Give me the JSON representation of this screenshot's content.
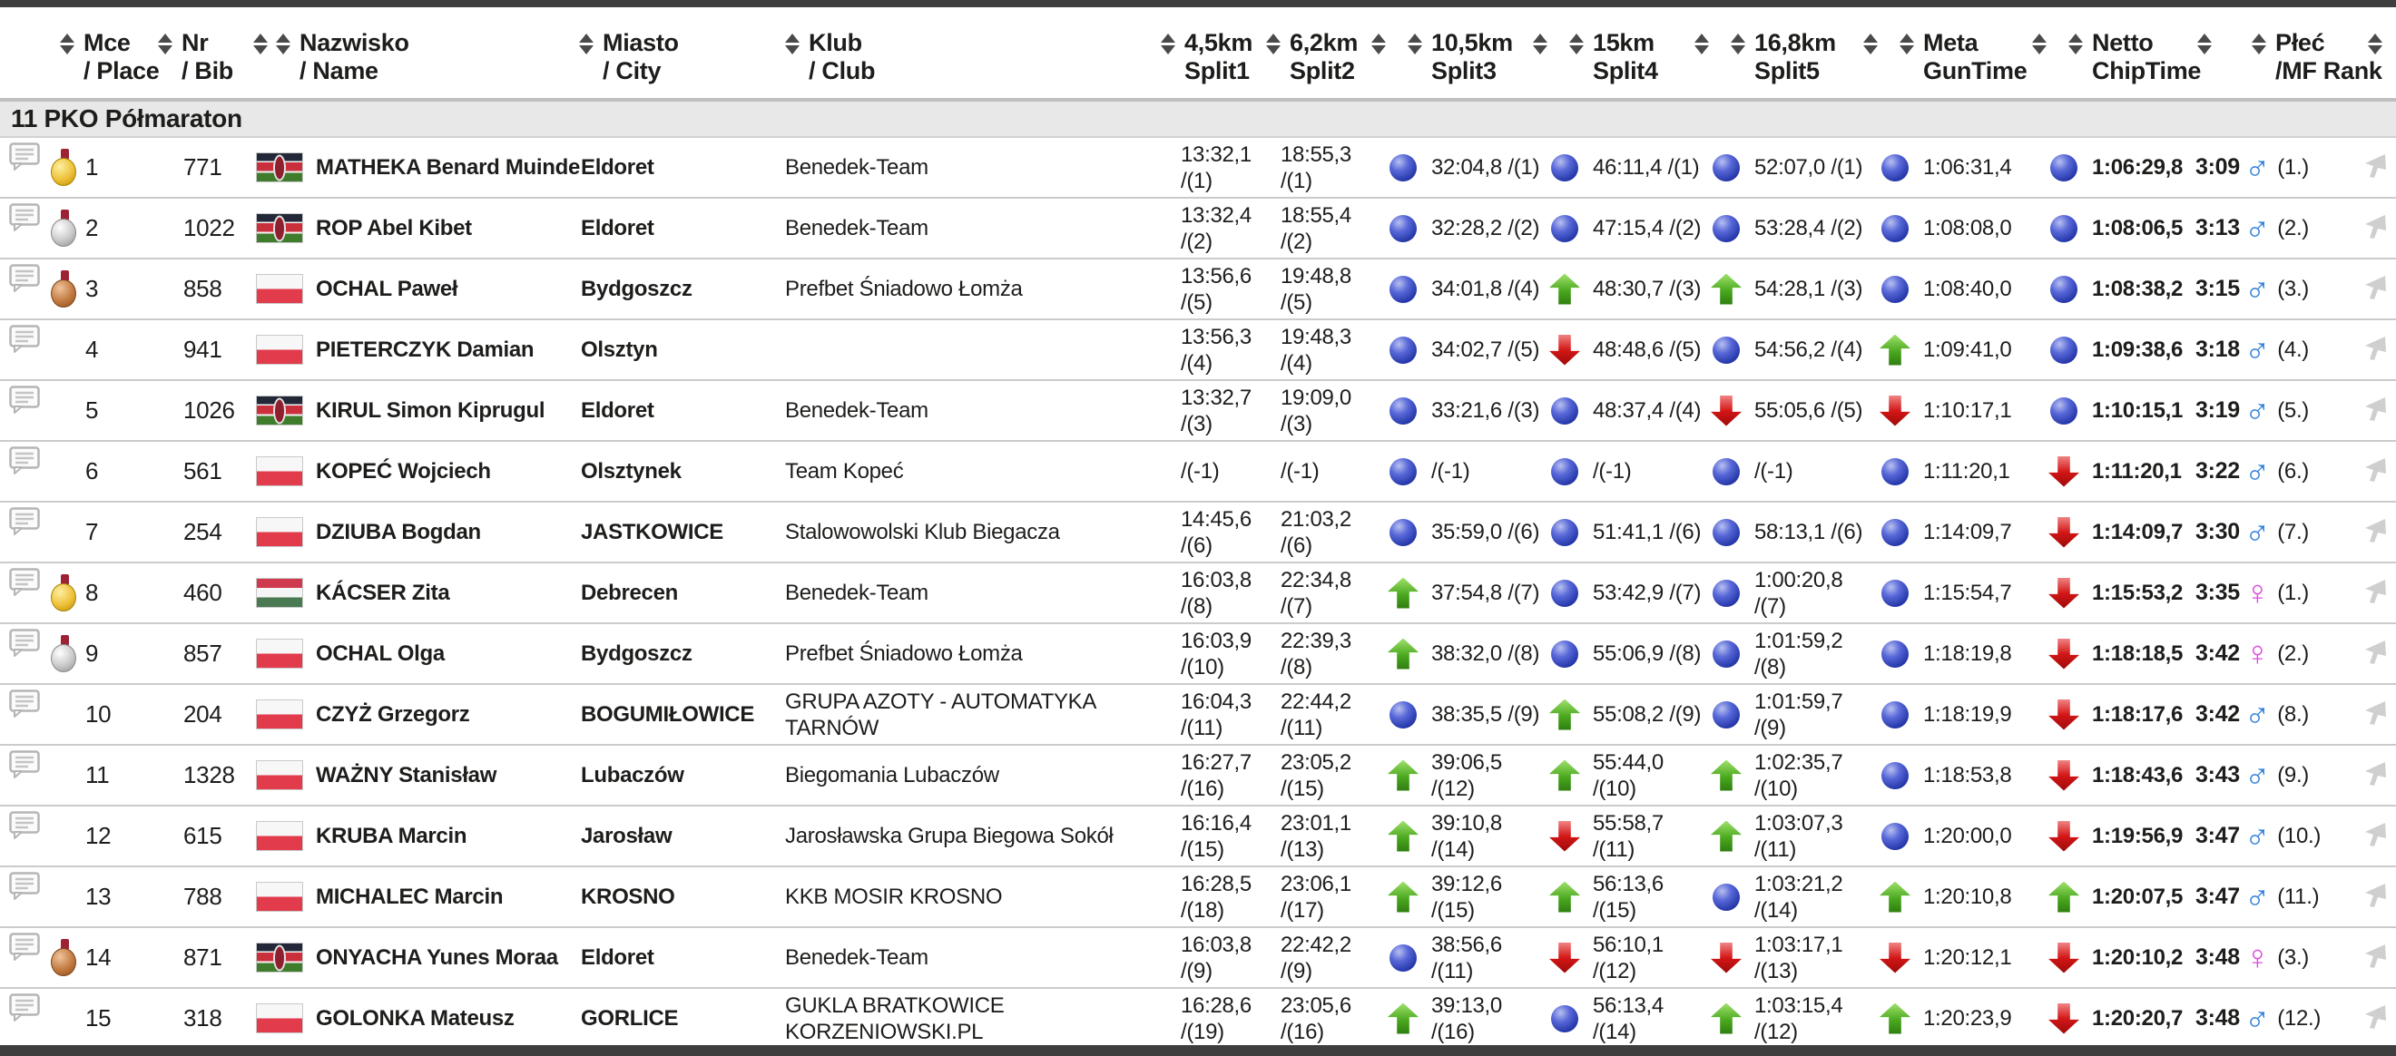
{
  "section": {
    "title": "11 PKO Półmaraton"
  },
  "header": {
    "columns": [
      {
        "line1": "Mce",
        "line2": "/ Place"
      },
      {
        "line1": "Nr",
        "line2": "/ Bib"
      },
      {
        "line1": "Nazwisko",
        "line2": "/ Name"
      },
      {
        "line1": "Miasto",
        "line2": "/ City"
      },
      {
        "line1": "Klub",
        "line2": "/ Club"
      },
      {
        "line1": "4,5km",
        "line2": "Split1"
      },
      {
        "line1": "6,2km",
        "line2": "Split2"
      },
      {
        "line1": "10,5km",
        "line2": "Split3"
      },
      {
        "line1": "15km",
        "line2": "Split4"
      },
      {
        "line1": "16,8km",
        "line2": "Split5"
      },
      {
        "line1": "Meta",
        "line2": "GunTime"
      },
      {
        "line1": "Netto",
        "line2": "ChipTime"
      },
      {
        "line1": "",
        "line2": ""
      },
      {
        "line1": "Płeć",
        "line2": "/MF Rank"
      }
    ]
  },
  "icons": {
    "comment": "comment-bubble-icon",
    "sort": "sort-arrows-icon",
    "trend_same": "blue-dot-icon",
    "trend_up": "green-up-arrow-icon",
    "trend_down": "red-down-arrow-icon",
    "male": "male-symbol-icon",
    "female": "female-symbol-icon",
    "medal": "medal-icon",
    "cursor": "cursor-icon"
  },
  "colors": {
    "male": "#2d7fd9",
    "female": "#df4ddf",
    "trend_up": "#4aa81e",
    "trend_down": "#d31616",
    "trend_same": "#2436a8",
    "medal_gold": "#eec13a",
    "medal_silver": "#c9c9c9",
    "medal_bronze": "#c17a40",
    "section_bg": "#e8e8e8",
    "dark_strip": "#3e3e3e"
  },
  "rows": [
    {
      "place": "1",
      "medal": "gold",
      "bib": "771",
      "flag": "ke",
      "name": "MATHEKA Benard Muinde",
      "city": "Eldoret",
      "club": "Benedek-Team",
      "split1": {
        "time": "13:32,1",
        "rank": "1"
      },
      "split2": {
        "time": "18:55,3",
        "rank": "1"
      },
      "split3": {
        "trend": "same",
        "time": "32:04,8",
        "rank": "1"
      },
      "split4": {
        "trend": "same",
        "time": "46:11,4",
        "rank": "1"
      },
      "split5": {
        "trend": "same",
        "time": "52:07,0",
        "rank": "1"
      },
      "gun": {
        "trend": "same",
        "time": "1:06:31,4"
      },
      "chip": {
        "trend": "same",
        "time": "1:06:29,8"
      },
      "pace": "3:09",
      "sex": "m",
      "sex_rank": "(1.)"
    },
    {
      "place": "2",
      "medal": "silver",
      "bib": "1022",
      "flag": "ke",
      "name": "ROP Abel Kibet",
      "city": "Eldoret",
      "club": "Benedek-Team",
      "split1": {
        "time": "13:32,4",
        "rank": "2"
      },
      "split2": {
        "time": "18:55,4",
        "rank": "2"
      },
      "split3": {
        "trend": "same",
        "time": "32:28,2",
        "rank": "2"
      },
      "split4": {
        "trend": "same",
        "time": "47:15,4",
        "rank": "2"
      },
      "split5": {
        "trend": "same",
        "time": "53:28,4",
        "rank": "2"
      },
      "gun": {
        "trend": "same",
        "time": "1:08:08,0"
      },
      "chip": {
        "trend": "same",
        "time": "1:08:06,5"
      },
      "pace": "3:13",
      "sex": "m",
      "sex_rank": "(2.)"
    },
    {
      "place": "3",
      "medal": "bronze",
      "bib": "858",
      "flag": "pl",
      "name": "OCHAL Paweł",
      "city": "Bydgoszcz",
      "club": "Prefbet Śniadowo Łomża",
      "split1": {
        "time": "13:56,6",
        "rank": "5"
      },
      "split2": {
        "time": "19:48,8",
        "rank": "5"
      },
      "split3": {
        "trend": "same",
        "time": "34:01,8",
        "rank": "4"
      },
      "split4": {
        "trend": "up",
        "time": "48:30,7",
        "rank": "3"
      },
      "split5": {
        "trend": "up",
        "time": "54:28,1",
        "rank": "3"
      },
      "gun": {
        "trend": "same",
        "time": "1:08:40,0"
      },
      "chip": {
        "trend": "same",
        "time": "1:08:38,2"
      },
      "pace": "3:15",
      "sex": "m",
      "sex_rank": "(3.)"
    },
    {
      "place": "4",
      "medal": "none",
      "bib": "941",
      "flag": "pl",
      "name": "PIETERCZYK Damian",
      "city": "Olsztyn",
      "club": "",
      "split1": {
        "time": "13:56,3",
        "rank": "4"
      },
      "split2": {
        "time": "19:48,3",
        "rank": "4"
      },
      "split3": {
        "trend": "same",
        "time": "34:02,7",
        "rank": "5"
      },
      "split4": {
        "trend": "down",
        "time": "48:48,6",
        "rank": "5"
      },
      "split5": {
        "trend": "same",
        "time": "54:56,2",
        "rank": "4"
      },
      "gun": {
        "trend": "up",
        "time": "1:09:41,0"
      },
      "chip": {
        "trend": "same",
        "time": "1:09:38,6"
      },
      "pace": "3:18",
      "sex": "m",
      "sex_rank": "(4.)"
    },
    {
      "place": "5",
      "medal": "none",
      "bib": "1026",
      "flag": "ke",
      "name": "KIRUL Simon Kiprugul",
      "city": "Eldoret",
      "club": "Benedek-Team",
      "split1": {
        "time": "13:32,7",
        "rank": "3"
      },
      "split2": {
        "time": "19:09,0",
        "rank": "3"
      },
      "split3": {
        "trend": "same",
        "time": "33:21,6",
        "rank": "3"
      },
      "split4": {
        "trend": "same",
        "time": "48:37,4",
        "rank": "4"
      },
      "split5": {
        "trend": "down",
        "time": "55:05,6",
        "rank": "5"
      },
      "gun": {
        "trend": "down",
        "time": "1:10:17,1"
      },
      "chip": {
        "trend": "same",
        "time": "1:10:15,1"
      },
      "pace": "3:19",
      "sex": "m",
      "sex_rank": "(5.)"
    },
    {
      "place": "6",
      "medal": "none",
      "bib": "561",
      "flag": "pl",
      "name": "KOPEĆ Wojciech",
      "city": "Olsztynek",
      "club": "Team Kopeć",
      "split1": {
        "time": "",
        "rank": "-1"
      },
      "split2": {
        "time": "",
        "rank": "-1"
      },
      "split3": {
        "trend": "same",
        "time": "",
        "rank": "-1"
      },
      "split4": {
        "trend": "same",
        "time": "",
        "rank": "-1"
      },
      "split5": {
        "trend": "same",
        "time": "",
        "rank": "-1"
      },
      "gun": {
        "trend": "same",
        "time": "1:11:20,1"
      },
      "chip": {
        "trend": "down",
        "time": "1:11:20,1"
      },
      "pace": "3:22",
      "sex": "m",
      "sex_rank": "(6.)"
    },
    {
      "place": "7",
      "medal": "none",
      "bib": "254",
      "flag": "pl",
      "name": "DZIUBA Bogdan",
      "city": "JASTKOWICE",
      "club": "Stalowowolski Klub Biegacza",
      "split1": {
        "time": "14:45,6",
        "rank": "6"
      },
      "split2": {
        "time": "21:03,2",
        "rank": "6"
      },
      "split3": {
        "trend": "same",
        "time": "35:59,0",
        "rank": "6"
      },
      "split4": {
        "trend": "same",
        "time": "51:41,1",
        "rank": "6"
      },
      "split5": {
        "trend": "same",
        "time": "58:13,1",
        "rank": "6"
      },
      "gun": {
        "trend": "same",
        "time": "1:14:09,7"
      },
      "chip": {
        "trend": "down",
        "time": "1:14:09,7"
      },
      "pace": "3:30",
      "sex": "m",
      "sex_rank": "(7.)"
    },
    {
      "place": "8",
      "medal": "gold",
      "bib": "460",
      "flag": "hu",
      "name": "KÁCSER Zita",
      "city": "Debrecen",
      "club": "Benedek-Team",
      "split1": {
        "time": "16:03,8",
        "rank": "8"
      },
      "split2": {
        "time": "22:34,8",
        "rank": "7"
      },
      "split3": {
        "trend": "up",
        "time": "37:54,8",
        "rank": "7"
      },
      "split4": {
        "trend": "same",
        "time": "53:42,9",
        "rank": "7"
      },
      "split5": {
        "trend": "same",
        "time": "1:00:20,8",
        "rank": "7"
      },
      "gun": {
        "trend": "same",
        "time": "1:15:54,7"
      },
      "chip": {
        "trend": "down",
        "time": "1:15:53,2"
      },
      "pace": "3:35",
      "sex": "f",
      "sex_rank": "(1.)"
    },
    {
      "place": "9",
      "medal": "silver",
      "bib": "857",
      "flag": "pl",
      "name": "OCHAL Olga",
      "city": "Bydgoszcz",
      "club": "Prefbet Śniadowo Łomża",
      "split1": {
        "time": "16:03,9",
        "rank": "10"
      },
      "split2": {
        "time": "22:39,3",
        "rank": "8"
      },
      "split3": {
        "trend": "up",
        "time": "38:32,0",
        "rank": "8"
      },
      "split4": {
        "trend": "same",
        "time": "55:06,9",
        "rank": "8"
      },
      "split5": {
        "trend": "same",
        "time": "1:01:59,2",
        "rank": "8"
      },
      "gun": {
        "trend": "same",
        "time": "1:18:19,8"
      },
      "chip": {
        "trend": "down",
        "time": "1:18:18,5"
      },
      "pace": "3:42",
      "sex": "f",
      "sex_rank": "(2.)"
    },
    {
      "place": "10",
      "medal": "none",
      "bib": "204",
      "flag": "pl",
      "name": "CZYŻ Grzegorz",
      "city": "BOGUMIŁOWICE",
      "club": "GRUPA AZOTY - AUTOMATYKA TARNÓW",
      "split1": {
        "time": "16:04,3",
        "rank": "11"
      },
      "split2": {
        "time": "22:44,2",
        "rank": "11"
      },
      "split3": {
        "trend": "same",
        "time": "38:35,5",
        "rank": "9"
      },
      "split4": {
        "trend": "up",
        "time": "55:08,2",
        "rank": "9"
      },
      "split5": {
        "trend": "same",
        "time": "1:01:59,7",
        "rank": "9"
      },
      "gun": {
        "trend": "same",
        "time": "1:18:19,9"
      },
      "chip": {
        "trend": "down",
        "time": "1:18:17,6"
      },
      "pace": "3:42",
      "sex": "m",
      "sex_rank": "(8.)"
    },
    {
      "place": "11",
      "medal": "none",
      "bib": "1328",
      "flag": "pl",
      "name": "WAŻNY Stanisław",
      "city": "Lubaczów",
      "club": "Biegomania Lubaczów",
      "split1": {
        "time": "16:27,7",
        "rank": "16"
      },
      "split2": {
        "time": "23:05,2",
        "rank": "15"
      },
      "split3": {
        "trend": "up",
        "time": "39:06,5",
        "rank": "12"
      },
      "split4": {
        "trend": "up",
        "time": "55:44,0",
        "rank": "10"
      },
      "split5": {
        "trend": "up",
        "time": "1:02:35,7",
        "rank": "10"
      },
      "gun": {
        "trend": "same",
        "time": "1:18:53,8"
      },
      "chip": {
        "trend": "down",
        "time": "1:18:43,6"
      },
      "pace": "3:43",
      "sex": "m",
      "sex_rank": "(9.)"
    },
    {
      "place": "12",
      "medal": "none",
      "bib": "615",
      "flag": "pl",
      "name": "KRUBA Marcin",
      "city": "Jarosław",
      "club": "Jarosławska Grupa Biegowa Sokół",
      "split1": {
        "time": "16:16,4",
        "rank": "15"
      },
      "split2": {
        "time": "23:01,1",
        "rank": "13"
      },
      "split3": {
        "trend": "up",
        "time": "39:10,8",
        "rank": "14"
      },
      "split4": {
        "trend": "down",
        "time": "55:58,7",
        "rank": "11"
      },
      "split5": {
        "trend": "up",
        "time": "1:03:07,3",
        "rank": "11"
      },
      "gun": {
        "trend": "same",
        "time": "1:20:00,0"
      },
      "chip": {
        "trend": "down",
        "time": "1:19:56,9"
      },
      "pace": "3:47",
      "sex": "m",
      "sex_rank": "(10.)"
    },
    {
      "place": "13",
      "medal": "none",
      "bib": "788",
      "flag": "pl",
      "name": "MICHALEC Marcin",
      "city": "KROSNO",
      "club": "KKB MOSIR KROSNO",
      "split1": {
        "time": "16:28,5",
        "rank": "18"
      },
      "split2": {
        "time": "23:06,1",
        "rank": "17"
      },
      "split3": {
        "trend": "up",
        "time": "39:12,6",
        "rank": "15"
      },
      "split4": {
        "trend": "up",
        "time": "56:13,6",
        "rank": "15"
      },
      "split5": {
        "trend": "same",
        "time": "1:03:21,2",
        "rank": "14"
      },
      "gun": {
        "trend": "up",
        "time": "1:20:10,8"
      },
      "chip": {
        "trend": "up",
        "time": "1:20:07,5"
      },
      "pace": "3:47",
      "sex": "m",
      "sex_rank": "(11.)"
    },
    {
      "place": "14",
      "medal": "bronze",
      "bib": "871",
      "flag": "ke",
      "name": "ONYACHA Yunes Moraa",
      "city": "Eldoret",
      "club": "Benedek-Team",
      "split1": {
        "time": "16:03,8",
        "rank": "9"
      },
      "split2": {
        "time": "22:42,2",
        "rank": "9"
      },
      "split3": {
        "trend": "same",
        "time": "38:56,6",
        "rank": "11"
      },
      "split4": {
        "trend": "down",
        "time": "56:10,1",
        "rank": "12"
      },
      "split5": {
        "trend": "down",
        "time": "1:03:17,1",
        "rank": "13"
      },
      "gun": {
        "trend": "down",
        "time": "1:20:12,1"
      },
      "chip": {
        "trend": "down",
        "time": "1:20:10,2"
      },
      "pace": "3:48",
      "sex": "f",
      "sex_rank": "(3.)"
    },
    {
      "place": "15",
      "medal": "none",
      "bib": "318",
      "flag": "pl",
      "name": "GOLONKA Mateusz",
      "city": "GORLICE",
      "club": "GUKLA BRATKOWICE KORZENIOWSKI.PL",
      "split1": {
        "time": "16:28,6",
        "rank": "19"
      },
      "split2": {
        "time": "23:05,6",
        "rank": "16"
      },
      "split3": {
        "trend": "up",
        "time": "39:13,0",
        "rank": "16"
      },
      "split4": {
        "trend": "same",
        "time": "56:13,4",
        "rank": "14"
      },
      "split5": {
        "trend": "up",
        "time": "1:03:15,4",
        "rank": "12"
      },
      "gun": {
        "trend": "up",
        "time": "1:20:23,9"
      },
      "chip": {
        "trend": "down",
        "time": "1:20:20,7"
      },
      "pace": "3:48",
      "sex": "m",
      "sex_rank": "(12.)"
    }
  ]
}
